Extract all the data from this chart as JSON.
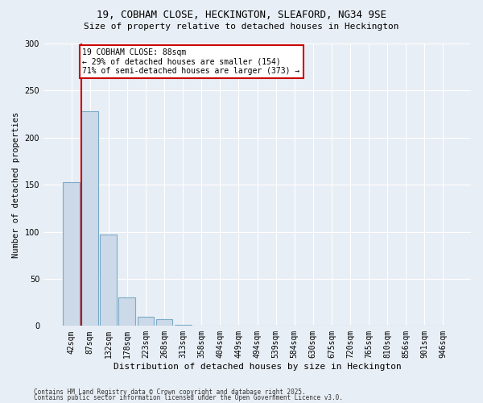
{
  "title1": "19, COBHAM CLOSE, HECKINGTON, SLEAFORD, NG34 9SE",
  "title2": "Size of property relative to detached houses in Heckington",
  "xlabel": "Distribution of detached houses by size in Heckington",
  "ylabel": "Number of detached properties",
  "bins": [
    "42sqm",
    "87sqm",
    "132sqm",
    "178sqm",
    "223sqm",
    "268sqm",
    "313sqm",
    "358sqm",
    "404sqm",
    "449sqm",
    "494sqm",
    "539sqm",
    "584sqm",
    "630sqm",
    "675sqm",
    "720sqm",
    "765sqm",
    "810sqm",
    "856sqm",
    "901sqm",
    "946sqm"
  ],
  "values": [
    153,
    228,
    97,
    30,
    10,
    7,
    1,
    0,
    0,
    0,
    0,
    0,
    0,
    0,
    0,
    0,
    0,
    0,
    0,
    0,
    0
  ],
  "bar_color": "#ccd9e8",
  "bar_edge_color": "#7aaac8",
  "vline_color": "#cc0000",
  "annotation_text": "19 COBHAM CLOSE: 88sqm\n← 29% of detached houses are smaller (154)\n71% of semi-detached houses are larger (373) →",
  "annotation_box_color": "#ffffff",
  "annotation_box_edge_color": "#cc0000",
  "background_color": "#e8eef5",
  "plot_bg_color": "#e8eef5",
  "ylim": [
    0,
    300
  ],
  "yticks": [
    0,
    50,
    100,
    150,
    200,
    250,
    300
  ],
  "footer1": "Contains HM Land Registry data © Crown copyright and database right 2025.",
  "footer2": "Contains public sector information licensed under the Open Government Licence v3.0."
}
